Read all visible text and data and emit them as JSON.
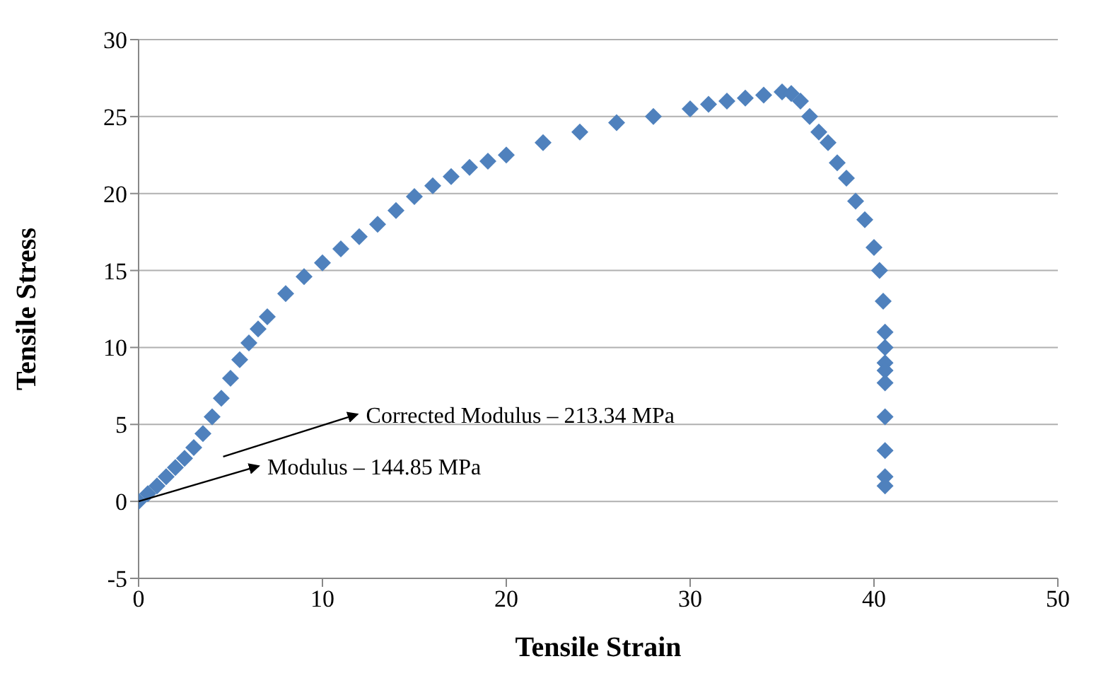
{
  "chart_data": {
    "type": "scatter",
    "xlabel": "Tensile Strain",
    "ylabel": "Tensile Stress",
    "xlim": [
      0,
      50
    ],
    "xticks": [
      0,
      10,
      20,
      30,
      40,
      50
    ],
    "ylim": [
      -5,
      30
    ],
    "yticks": [
      -5,
      0,
      5,
      10,
      15,
      20,
      25,
      30
    ],
    "grid": "y",
    "marker": "diamond",
    "x": [
      0,
      0.5,
      1,
      1.5,
      2,
      2.5,
      3,
      3.5,
      4,
      4.5,
      5,
      5.5,
      6,
      6.5,
      7,
      8,
      9,
      10,
      11,
      12,
      13,
      14,
      15,
      16,
      17,
      18,
      19,
      20,
      22,
      24,
      26,
      28,
      30,
      31,
      32,
      33,
      34,
      35,
      35.5,
      36,
      36.5,
      37,
      37.5,
      38,
      38.5,
      39,
      39.5,
      40,
      40.3,
      40.5,
      40.6,
      40.6,
      40.6,
      40.6,
      40.6,
      40.6,
      40.6,
      40.6
    ],
    "series": [
      {
        "color": "#4f81bd",
        "values": [
          0,
          0.5,
          1,
          1.6,
          2.2,
          2.8,
          3.5,
          4.4,
          5.5,
          6.7,
          8,
          9.2,
          10.3,
          11.2,
          12,
          13.5,
          14.6,
          15.5,
          16.4,
          17.2,
          18,
          18.9,
          19.8,
          20.5,
          21.1,
          21.7,
          22.1,
          22.5,
          23.3,
          24,
          24.6,
          25,
          25.5,
          25.8,
          26,
          26.2,
          26.4,
          26.6,
          26.5,
          26,
          25,
          24,
          23.3,
          22,
          21,
          19.5,
          18.3,
          16.5,
          15,
          13,
          11,
          10,
          9,
          8.5,
          7.7,
          5.5,
          3.3,
          1.6
        ]
      },
      {
        "color": "#4f81bd",
        "values": [
          null,
          null,
          null,
          null,
          null,
          null,
          null,
          null,
          null,
          null,
          null,
          null,
          null,
          null,
          null,
          null,
          null,
          null,
          null,
          null,
          null,
          null,
          null,
          null,
          null,
          null,
          null,
          null,
          null,
          null,
          null,
          null,
          null,
          null,
          null,
          null,
          null,
          null,
          null,
          null,
          null,
          null,
          null,
          null,
          null,
          null,
          null,
          null,
          null,
          null,
          null,
          null,
          null,
          null,
          null,
          null,
          null,
          1.0
        ]
      }
    ],
    "annotations": [
      "Corrected Modulus –  213.34 MPa",
      "Modulus –  144.85 MPa"
    ]
  }
}
